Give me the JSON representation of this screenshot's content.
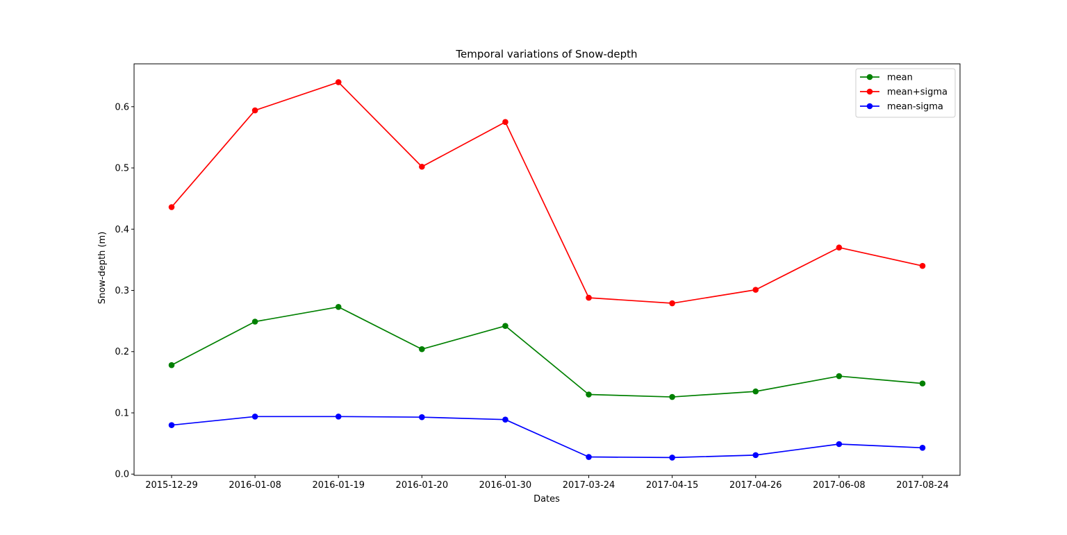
{
  "chart_data": {
    "type": "line",
    "title": "Temporal variations of Snow-depth",
    "xlabel": "Dates",
    "ylabel": "Snow-depth (m)",
    "categories": [
      "2015-12-29",
      "2016-01-08",
      "2016-01-19",
      "2016-01-20",
      "2016-01-30",
      "2017-03-24",
      "2017-04-15",
      "2017-04-26",
      "2017-06-08",
      "2017-08-24"
    ],
    "ylim": [
      -0.002,
      0.67
    ],
    "yticks": [
      "0.0",
      "0.1",
      "0.2",
      "0.3",
      "0.4",
      "0.5",
      "0.6"
    ],
    "legend_position": "top-right",
    "grid": false,
    "series": [
      {
        "name": "mean",
        "color": "#008000",
        "values": [
          0.178,
          0.249,
          0.273,
          0.204,
          0.242,
          0.13,
          0.126,
          0.135,
          0.16,
          0.148
        ]
      },
      {
        "name": "mean+sigma",
        "color": "#ff0000",
        "values": [
          0.436,
          0.594,
          0.64,
          0.502,
          0.575,
          0.288,
          0.279,
          0.301,
          0.37,
          0.34
        ]
      },
      {
        "name": "mean-sigma",
        "color": "#0000ff",
        "values": [
          0.08,
          0.094,
          0.094,
          0.093,
          0.089,
          0.028,
          0.027,
          0.031,
          0.049,
          0.043
        ]
      }
    ]
  }
}
